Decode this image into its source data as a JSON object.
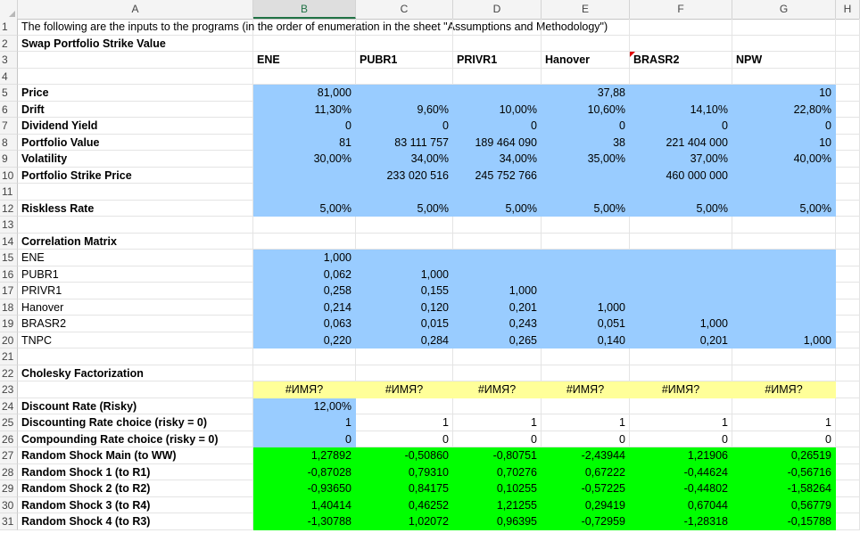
{
  "columns": [
    "A",
    "B",
    "C",
    "D",
    "E",
    "F",
    "G",
    "H"
  ],
  "selected_column": "B",
  "rows": [
    {
      "n": "1",
      "cells": [
        {
          "t": "The following are the inputs to the programs (in the order of enumeration in the sheet \"Assumptions and Methodology\")"
        },
        null,
        null,
        null,
        null,
        null,
        null,
        null
      ]
    },
    {
      "n": "2",
      "cells": [
        {
          "t": "Swap Portfolio Strike Value",
          "b": true
        },
        null,
        null,
        null,
        null,
        null,
        null,
        null
      ]
    },
    {
      "n": "3",
      "cells": [
        null,
        {
          "t": "ENE",
          "b": true,
          "a": "l"
        },
        {
          "t": "PUBR1",
          "b": true,
          "a": "l"
        },
        {
          "t": "PRIVR1",
          "b": true,
          "a": "l"
        },
        {
          "t": "Hanover",
          "b": true,
          "a": "l"
        },
        {
          "t": "BRASR2",
          "b": true,
          "a": "l",
          "flag": true
        },
        {
          "t": "NPW",
          "b": true,
          "a": "l"
        },
        null
      ]
    },
    {
      "n": "4",
      "cells": [
        null,
        null,
        null,
        null,
        null,
        null,
        null,
        null
      ]
    },
    {
      "n": "5",
      "cells": [
        {
          "t": "Price",
          "b": true
        },
        {
          "t": "81,000",
          "f": "blue"
        },
        {
          "t": "",
          "f": "blue"
        },
        {
          "t": "",
          "f": "blue"
        },
        {
          "t": "37,88",
          "f": "blue"
        },
        {
          "t": "",
          "f": "blue"
        },
        {
          "t": "10",
          "f": "blue"
        },
        null
      ]
    },
    {
      "n": "6",
      "cells": [
        {
          "t": "Drift",
          "b": true
        },
        {
          "t": "11,30%",
          "f": "blue"
        },
        {
          "t": "9,60%",
          "f": "blue"
        },
        {
          "t": "10,00%",
          "f": "blue"
        },
        {
          "t": "10,60%",
          "f": "blue"
        },
        {
          "t": "14,10%",
          "f": "blue"
        },
        {
          "t": "22,80%",
          "f": "blue"
        },
        null
      ]
    },
    {
      "n": "7",
      "cells": [
        {
          "t": "Dividend Yield",
          "b": true
        },
        {
          "t": "0",
          "f": "blue"
        },
        {
          "t": "0",
          "f": "blue"
        },
        {
          "t": "0",
          "f": "blue"
        },
        {
          "t": "0",
          "f": "blue"
        },
        {
          "t": "0",
          "f": "blue"
        },
        {
          "t": "0",
          "f": "blue"
        },
        null
      ]
    },
    {
      "n": "8",
      "cells": [
        {
          "t": "Portfolio Value",
          "b": true
        },
        {
          "t": "81",
          "f": "blue"
        },
        {
          "t": "83 111 757",
          "f": "blue"
        },
        {
          "t": "189 464 090",
          "f": "blue"
        },
        {
          "t": "38",
          "f": "blue"
        },
        {
          "t": "221 404 000",
          "f": "blue"
        },
        {
          "t": "10",
          "f": "blue"
        },
        null
      ]
    },
    {
      "n": "9",
      "cells": [
        {
          "t": "Volatility",
          "b": true
        },
        {
          "t": "30,00%",
          "f": "blue"
        },
        {
          "t": "34,00%",
          "f": "blue"
        },
        {
          "t": "34,00%",
          "f": "blue"
        },
        {
          "t": "35,00%",
          "f": "blue"
        },
        {
          "t": "37,00%",
          "f": "blue"
        },
        {
          "t": "40,00%",
          "f": "blue"
        },
        null
      ]
    },
    {
      "n": "10",
      "cells": [
        {
          "t": "Portfolio Strike Price",
          "b": true
        },
        {
          "t": "",
          "f": "blue"
        },
        {
          "t": "233 020 516",
          "f": "blue"
        },
        {
          "t": "245 752 766",
          "f": "blue"
        },
        {
          "t": "",
          "f": "blue"
        },
        {
          "t": "460 000 000",
          "f": "blue"
        },
        {
          "t": "",
          "f": "blue"
        },
        null
      ]
    },
    {
      "n": "11",
      "cells": [
        null,
        {
          "t": "",
          "f": "blue"
        },
        {
          "t": "",
          "f": "blue"
        },
        {
          "t": "",
          "f": "blue"
        },
        {
          "t": "",
          "f": "blue"
        },
        {
          "t": "",
          "f": "blue"
        },
        {
          "t": "",
          "f": "blue"
        },
        null
      ]
    },
    {
      "n": "12",
      "cells": [
        {
          "t": "Riskless Rate",
          "b": true
        },
        {
          "t": "5,00%",
          "f": "blue"
        },
        {
          "t": "5,00%",
          "f": "blue"
        },
        {
          "t": "5,00%",
          "f": "blue"
        },
        {
          "t": "5,00%",
          "f": "blue"
        },
        {
          "t": "5,00%",
          "f": "blue"
        },
        {
          "t": "5,00%",
          "f": "blue"
        },
        null
      ]
    },
    {
      "n": "13",
      "cells": [
        null,
        null,
        null,
        null,
        null,
        null,
        null,
        null
      ]
    },
    {
      "n": "14",
      "cells": [
        {
          "t": "Correlation Matrix",
          "b": true
        },
        null,
        null,
        null,
        null,
        null,
        null,
        null
      ]
    },
    {
      "n": "15",
      "cells": [
        {
          "t": "ENE"
        },
        {
          "t": "1,000",
          "f": "blue"
        },
        {
          "t": "",
          "f": "blue"
        },
        {
          "t": "",
          "f": "blue"
        },
        {
          "t": "",
          "f": "blue"
        },
        {
          "t": "",
          "f": "blue"
        },
        {
          "t": "",
          "f": "blue"
        },
        null
      ]
    },
    {
      "n": "16",
      "cells": [
        {
          "t": "PUBR1"
        },
        {
          "t": "0,062",
          "f": "blue"
        },
        {
          "t": "1,000",
          "f": "blue"
        },
        {
          "t": "",
          "f": "blue"
        },
        {
          "t": "",
          "f": "blue"
        },
        {
          "t": "",
          "f": "blue"
        },
        {
          "t": "",
          "f": "blue"
        },
        null
      ]
    },
    {
      "n": "17",
      "cells": [
        {
          "t": "PRIVR1"
        },
        {
          "t": "0,258",
          "f": "blue"
        },
        {
          "t": "0,155",
          "f": "blue"
        },
        {
          "t": "1,000",
          "f": "blue"
        },
        {
          "t": "",
          "f": "blue"
        },
        {
          "t": "",
          "f": "blue"
        },
        {
          "t": "",
          "f": "blue"
        },
        null
      ]
    },
    {
      "n": "18",
      "cells": [
        {
          "t": "Hanover"
        },
        {
          "t": "0,214",
          "f": "blue"
        },
        {
          "t": "0,120",
          "f": "blue"
        },
        {
          "t": "0,201",
          "f": "blue"
        },
        {
          "t": "1,000",
          "f": "blue"
        },
        {
          "t": "",
          "f": "blue"
        },
        {
          "t": "",
          "f": "blue"
        },
        null
      ]
    },
    {
      "n": "19",
      "cells": [
        {
          "t": "BRASR2"
        },
        {
          "t": "0,063",
          "f": "blue"
        },
        {
          "t": "0,015",
          "f": "blue"
        },
        {
          "t": "0,243",
          "f": "blue"
        },
        {
          "t": "0,051",
          "f": "blue"
        },
        {
          "t": "1,000",
          "f": "blue"
        },
        {
          "t": "",
          "f": "blue"
        },
        null
      ]
    },
    {
      "n": "20",
      "cells": [
        {
          "t": "TNPC"
        },
        {
          "t": "0,220",
          "f": "blue"
        },
        {
          "t": "0,284",
          "f": "blue"
        },
        {
          "t": "0,265",
          "f": "blue"
        },
        {
          "t": "0,140",
          "f": "blue"
        },
        {
          "t": "0,201",
          "f": "blue"
        },
        {
          "t": "1,000",
          "f": "blue"
        },
        null
      ]
    },
    {
      "n": "21",
      "cells": [
        null,
        null,
        null,
        null,
        null,
        null,
        null,
        null
      ]
    },
    {
      "n": "22",
      "cells": [
        {
          "t": "Cholesky Factorization",
          "b": true
        },
        null,
        null,
        null,
        null,
        null,
        null,
        null
      ]
    },
    {
      "n": "23",
      "cells": [
        null,
        {
          "t": "#ИМЯ?",
          "f": "yel",
          "a": "c"
        },
        {
          "t": "#ИМЯ?",
          "f": "yel",
          "a": "c"
        },
        {
          "t": "#ИМЯ?",
          "f": "yel",
          "a": "c"
        },
        {
          "t": "#ИМЯ?",
          "f": "yel",
          "a": "c"
        },
        {
          "t": "#ИМЯ?",
          "f": "yel",
          "a": "c"
        },
        {
          "t": "#ИМЯ?",
          "f": "yel",
          "a": "c"
        },
        null
      ]
    },
    {
      "n": "24",
      "cells": [
        {
          "t": "Discount Rate (Risky)",
          "b": true
        },
        {
          "t": "12,00%",
          "f": "blue"
        },
        null,
        null,
        null,
        null,
        null,
        null
      ]
    },
    {
      "n": "25",
      "cells": [
        {
          "t": "Discounting Rate choice (risky = 0)",
          "b": true
        },
        {
          "t": "1",
          "f": "blue"
        },
        {
          "t": "1"
        },
        {
          "t": "1"
        },
        {
          "t": "1"
        },
        {
          "t": "1"
        },
        {
          "t": "1"
        },
        null
      ]
    },
    {
      "n": "26",
      "cells": [
        {
          "t": "Compounding Rate choice (risky = 0)",
          "b": true
        },
        {
          "t": "0",
          "f": "blue"
        },
        {
          "t": "0"
        },
        {
          "t": "0"
        },
        {
          "t": "0"
        },
        {
          "t": "0"
        },
        {
          "t": "0"
        },
        null
      ]
    },
    {
      "n": "27",
      "cells": [
        {
          "t": "Random Shock Main (to WW)",
          "b": true
        },
        {
          "t": "1,27892",
          "f": "grn"
        },
        {
          "t": "-0,50860",
          "f": "grn"
        },
        {
          "t": "-0,80751",
          "f": "grn"
        },
        {
          "t": "-2,43944",
          "f": "grn"
        },
        {
          "t": "1,21906",
          "f": "grn"
        },
        {
          "t": "0,26519",
          "f": "grn"
        },
        null
      ]
    },
    {
      "n": "28",
      "cells": [
        {
          "t": "Random Shock 1 (to R1)",
          "b": true
        },
        {
          "t": "-0,87028",
          "f": "grn"
        },
        {
          "t": "0,79310",
          "f": "grn"
        },
        {
          "t": "0,70276",
          "f": "grn"
        },
        {
          "t": "0,67222",
          "f": "grn"
        },
        {
          "t": "-0,44624",
          "f": "grn"
        },
        {
          "t": "-0,56716",
          "f": "grn"
        },
        null
      ]
    },
    {
      "n": "29",
      "cells": [
        {
          "t": "Random Shock 2 (to R2)",
          "b": true
        },
        {
          "t": "-0,93650",
          "f": "grn"
        },
        {
          "t": "0,84175",
          "f": "grn"
        },
        {
          "t": "0,10255",
          "f": "grn"
        },
        {
          "t": "-0,57225",
          "f": "grn"
        },
        {
          "t": "-0,44802",
          "f": "grn"
        },
        {
          "t": "-1,58264",
          "f": "grn"
        },
        null
      ]
    },
    {
      "n": "30",
      "cells": [
        {
          "t": "Random Shock 3 (to R4)",
          "b": true
        },
        {
          "t": "1,40414",
          "f": "grn"
        },
        {
          "t": "0,46252",
          "f": "grn"
        },
        {
          "t": "1,21255",
          "f": "grn"
        },
        {
          "t": "0,29419",
          "f": "grn"
        },
        {
          "t": "0,67044",
          "f": "grn"
        },
        {
          "t": "0,56779",
          "f": "grn"
        },
        null
      ]
    },
    {
      "n": "31",
      "cells": [
        {
          "t": "Random Shock 4 (to R3)",
          "b": true
        },
        {
          "t": "-1,30788",
          "f": "grn"
        },
        {
          "t": "1,02072",
          "f": "grn"
        },
        {
          "t": "0,96395",
          "f": "grn"
        },
        {
          "t": "-0,72959",
          "f": "grn"
        },
        {
          "t": "-1,28318",
          "f": "grn"
        },
        {
          "t": "-0,15788",
          "f": "grn"
        },
        null
      ]
    }
  ]
}
